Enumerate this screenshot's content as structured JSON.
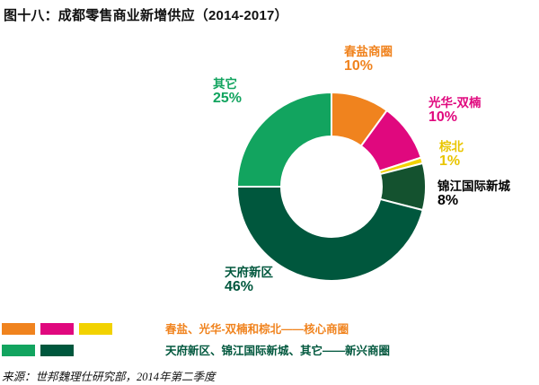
{
  "title": "图十八：成都零售商业新增供应（2014-2017）",
  "chart_data": {
    "type": "pie",
    "donut": true,
    "start_angle_deg": 0,
    "direction": "clockwise",
    "title": "图十八：成都零售商业新增供应（2014-2017）",
    "slices": [
      {
        "label": "春盐商圈",
        "value": 10,
        "display": "10%",
        "color": "#F0831E",
        "label_color": "#F0831E"
      },
      {
        "label": "光华-双楠",
        "value": 10,
        "display": "10%",
        "color": "#E0087E",
        "label_color": "#E0087E"
      },
      {
        "label": "棕北",
        "value": 1,
        "display": "1%",
        "color": "#F2D200",
        "label_color": "#E9C500"
      },
      {
        "label": "锦江国际新城",
        "value": 8,
        "display": "8%",
        "color": "#14522F",
        "label_color": "#000000"
      },
      {
        "label": "天府新区",
        "value": 46,
        "display": "46%",
        "color": "#00573D",
        "label_color": "#00573D"
      },
      {
        "label": "其它",
        "value": 25,
        "display": "25%",
        "color": "#12A45F",
        "label_color": "#12A45F"
      }
    ]
  },
  "legend": [
    {
      "swatches": [
        "#F0831E",
        "#E0087E",
        "#F2D200"
      ],
      "label": "春盐、光华-双楠和棕北——核心商圈",
      "text_color": "#F0831E"
    },
    {
      "swatches": [
        "#12A45F",
        "#00573D"
      ],
      "label": "天府新区、锦江国际新城、其它——新兴商圈",
      "text_color": "#00573D"
    }
  ],
  "source": "来源：世邦魏理仕研究部，2014年第二季度"
}
